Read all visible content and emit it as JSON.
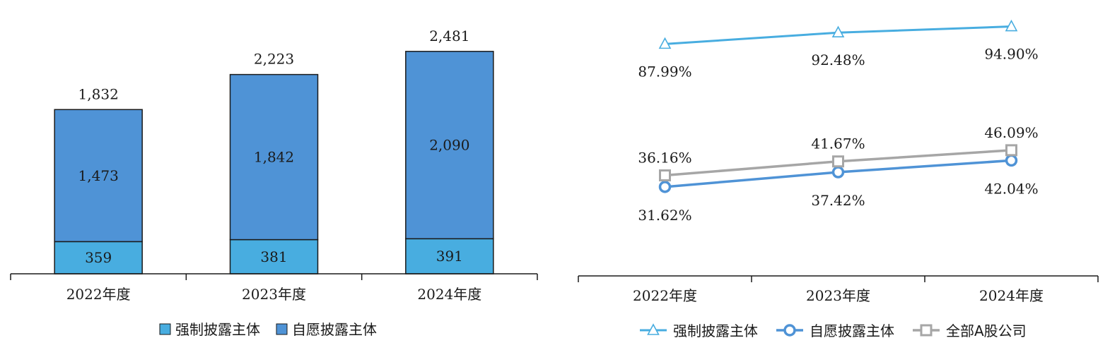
{
  "colors": {
    "mandatory": "#48ade0",
    "voluntary": "#4f93d6",
    "all_a": "#a6a6a6",
    "outline": "#1a1a1a"
  },
  "chart_data": [
    {
      "type": "bar",
      "stacked": true,
      "categories": [
        "2022年度",
        "2023年度",
        "2024年度"
      ],
      "series": [
        {
          "name": "强制披露主体",
          "values": [
            359,
            381,
            391
          ]
        },
        {
          "name": "自愿披露主体",
          "values": [
            1473,
            1842,
            2090
          ]
        }
      ],
      "value_labels": [
        [
          "359",
          "381",
          "391"
        ],
        [
          "1,473",
          "1,842",
          "2,090"
        ]
      ],
      "total_labels": [
        "1,832",
        "2,223",
        "2,481"
      ],
      "totals": [
        1832,
        2223,
        2481
      ],
      "ylim": [
        0,
        2700
      ],
      "grid": false,
      "legend": "bottom-center"
    },
    {
      "type": "line",
      "categories": [
        "2022年度",
        "2023年度",
        "2024年度"
      ],
      "series": [
        {
          "name": "强制披露主体",
          "marker": "triangle",
          "values": [
            87.99,
            92.48,
            94.9
          ],
          "labels": [
            "87.99%",
            "92.48%",
            "94.90%"
          ]
        },
        {
          "name": "自愿披露主体",
          "marker": "circle",
          "values": [
            31.62,
            37.42,
            42.04
          ],
          "labels": [
            "31.62%",
            "37.42%",
            "42.04%"
          ]
        },
        {
          "name": "全部A股公司",
          "marker": "square",
          "values": [
            36.16,
            41.67,
            46.09
          ],
          "labels": [
            "36.16%",
            "41.67%",
            "46.09%"
          ]
        }
      ],
      "ylim": [
        -3.5,
        97
      ],
      "grid": false,
      "legend": "bottom-center"
    }
  ]
}
